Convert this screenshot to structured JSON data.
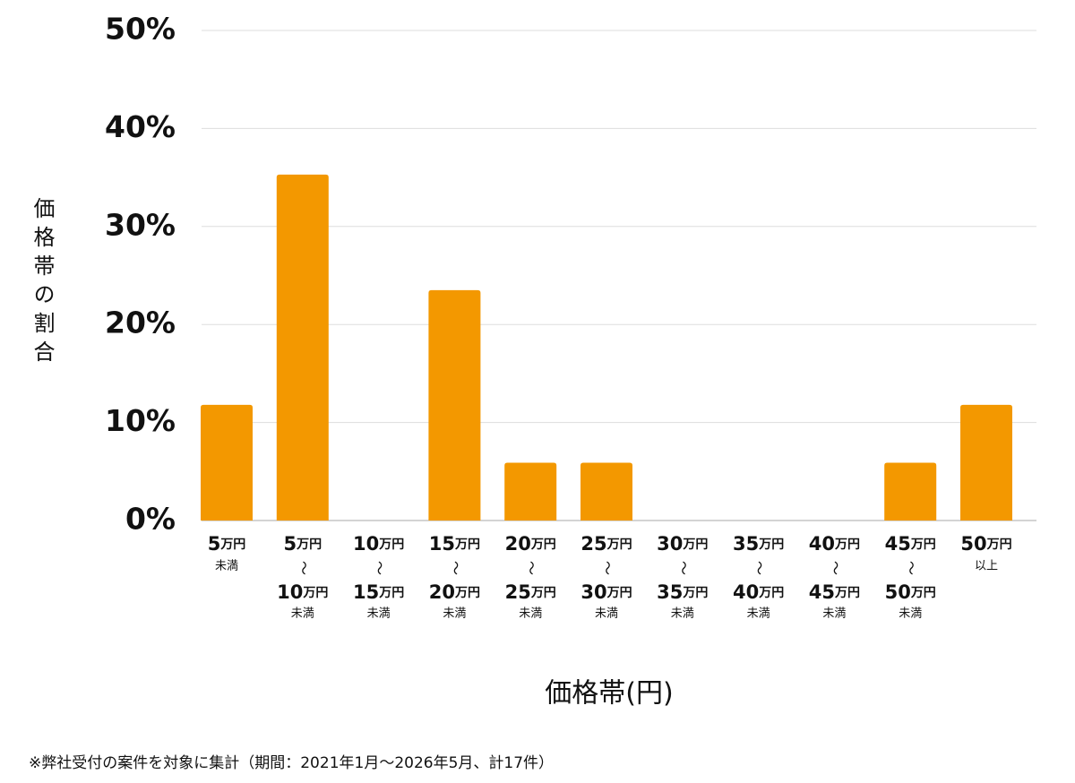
{
  "chart_data": {
    "type": "bar",
    "y_label": "価格帯の割合",
    "x_label": "価格帯(円)",
    "footnote": "※弊社受付の案件を対象に集計（期間：2021年1月～2026年5月、計17件）",
    "categories": [
      [
        "5万円",
        "未満"
      ],
      [
        "5万円",
        "～",
        "10万円",
        "未満"
      ],
      [
        "10万円",
        "～",
        "15万円",
        "未満"
      ],
      [
        "15万円",
        "～",
        "20万円",
        "未満"
      ],
      [
        "20万円",
        "～",
        "25万円",
        "未満"
      ],
      [
        "25万円",
        "～",
        "30万円",
        "未満"
      ],
      [
        "30万円",
        "～",
        "35万円",
        "未満"
      ],
      [
        "35万円",
        "～",
        "40万円",
        "未満"
      ],
      [
        "40万円",
        "～",
        "45万円",
        "未満"
      ],
      [
        "45万円",
        "～",
        "50万円",
        "未満"
      ],
      [
        "50万円",
        "以上"
      ]
    ],
    "values": [
      11.8,
      35.3,
      0,
      23.5,
      5.9,
      5.9,
      0,
      0,
      0,
      5.9,
      11.8
    ],
    "color": "#f39800",
    "ylim": [
      0,
      50
    ],
    "yticks": [
      {
        "value": 0,
        "label": "0%"
      },
      {
        "value": 10,
        "label": "10%"
      },
      {
        "value": 20,
        "label": "20%"
      },
      {
        "value": 30,
        "label": "30%"
      },
      {
        "value": 40,
        "label": "40%"
      },
      {
        "value": 50,
        "label": "50%"
      }
    ],
    "grid": true
  }
}
